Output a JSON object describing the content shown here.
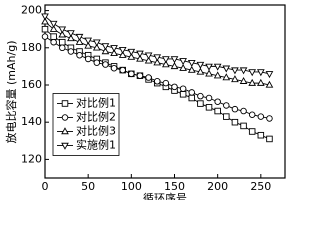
{
  "chart_data": {
    "type": "line",
    "x_label": "循环序号",
    "y_label": "放电比容量 (mAh/g)",
    "x": [
      0,
      10,
      20,
      30,
      40,
      50,
      60,
      70,
      80,
      90,
      100,
      110,
      120,
      130,
      140,
      150,
      160,
      170,
      180,
      190,
      200,
      210,
      220,
      230,
      240,
      250,
      260
    ],
    "series": [
      {
        "name": "对比例1",
        "color": "#000000",
        "marker": "square",
        "values": [
          190,
          186,
          183,
          180,
          178,
          176,
          174,
          172,
          170,
          168,
          166,
          165,
          163,
          161,
          159,
          157,
          155,
          153,
          150,
          148,
          146,
          143,
          140,
          138,
          135,
          133,
          131
        ]
      },
      {
        "name": "对比例2",
        "color": "#000000",
        "marker": "circle",
        "values": [
          186,
          183,
          180,
          178,
          176,
          174,
          172,
          171,
          169,
          168,
          166,
          165,
          164,
          162,
          161,
          159,
          158,
          156,
          154,
          153,
          151,
          149,
          147,
          146,
          144,
          143,
          142
        ]
      },
      {
        "name": "对比例3",
        "color": "#000000",
        "marker": "triangle-up",
        "values": [
          194,
          190,
          187,
          185,
          183,
          181,
          180,
          178,
          177,
          176,
          175,
          174,
          173,
          172,
          171,
          170,
          169,
          168,
          167,
          166,
          165,
          164,
          163,
          162,
          161,
          161,
          160
        ]
      },
      {
        "name": "实施例1",
        "color": "#000000",
        "marker": "triangle-down",
        "values": [
          197,
          193,
          190,
          188,
          186,
          184,
          183,
          181,
          180,
          179,
          178,
          177,
          176,
          175,
          174,
          174,
          173,
          172,
          171,
          170,
          170,
          169,
          168,
          168,
          167,
          167,
          166
        ]
      }
    ],
    "xlim": [
      0,
      278
    ],
    "ylim": [
      110,
      203
    ],
    "xticks": [
      0,
      50,
      100,
      150,
      200,
      250
    ],
    "yticks": [
      120,
      140,
      160,
      180,
      200
    ],
    "legend": "center left"
  }
}
